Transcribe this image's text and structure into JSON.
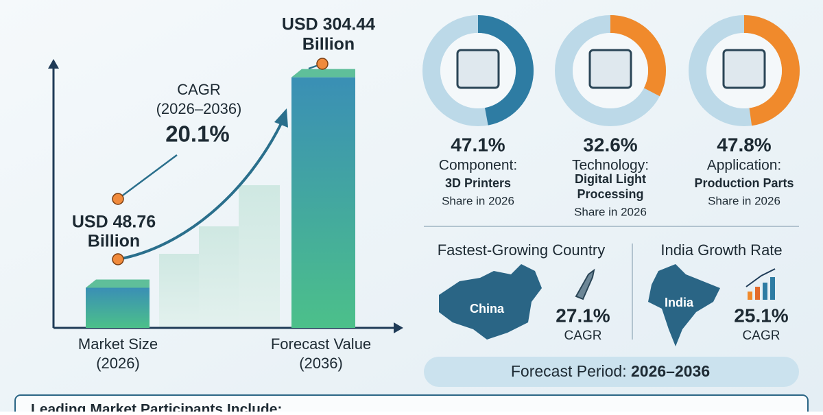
{
  "growth": {
    "start": {
      "value": 48.76,
      "value_label": "USD 48.76",
      "unit": "Billion",
      "axis_label": "Market Size",
      "year": "(2026)"
    },
    "end": {
      "value": 304.44,
      "value_label": "USD 304.44",
      "unit": "Billion",
      "axis_label": "Forecast Value",
      "year": "(2036)"
    },
    "cagr_title": "CAGR",
    "cagr_period": "(2026–2036)",
    "cagr_value": "20.1%"
  },
  "segments": [
    {
      "value": 47.1,
      "value_label": "47.1%",
      "category": "Component:",
      "name_lines": [
        "3D Printers"
      ],
      "note": "Share in 2026",
      "color": "#2e7ca3"
    },
    {
      "value": 32.6,
      "value_label": "32.6%",
      "category": "Technology:",
      "name_lines": [
        "Digital Light",
        "Processing"
      ],
      "note": "Share in 2026",
      "color": "#f08a2c"
    },
    {
      "value": 47.8,
      "value_label": "47.8%",
      "category": "Application:",
      "name_lines": [
        "Production Parts"
      ],
      "note": "Share in 2026",
      "color": "#f08a2c"
    }
  ],
  "countries": [
    {
      "title": "Fastest-Growing Country",
      "country": "China",
      "value": "27.1%",
      "unit": "CAGR"
    },
    {
      "title": "India Growth Rate",
      "country": "India",
      "value": "25.1%",
      "unit": "CAGR"
    }
  ],
  "forecast_period": {
    "label": "Forecast Period:",
    "period": "2026–2036"
  },
  "participants_title": "Leading Market Participants Include:"
}
